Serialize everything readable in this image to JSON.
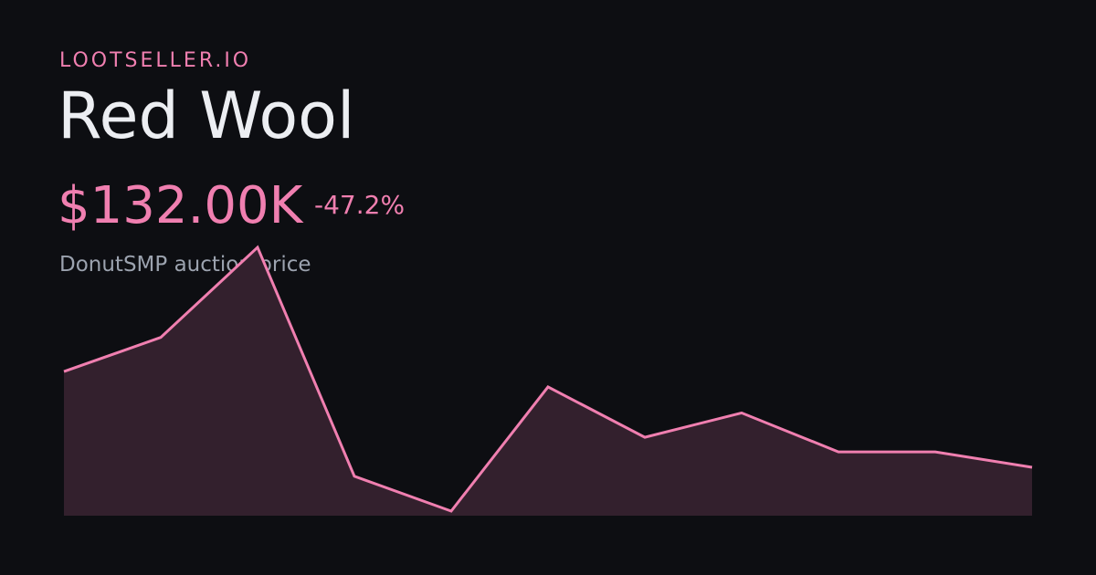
{
  "brand": "LOOTSELLER.IO",
  "title": "Red Wool",
  "price": "$132.00K",
  "change": "-47.2%",
  "subtitle": "DonutSMP auction price",
  "chart_data": {
    "type": "line",
    "values": [
      250000,
      292000,
      403000,
      121000,
      78000,
      231000,
      169000,
      199000,
      151000,
      151000,
      132000
    ],
    "color": "#f07fb0"
  }
}
